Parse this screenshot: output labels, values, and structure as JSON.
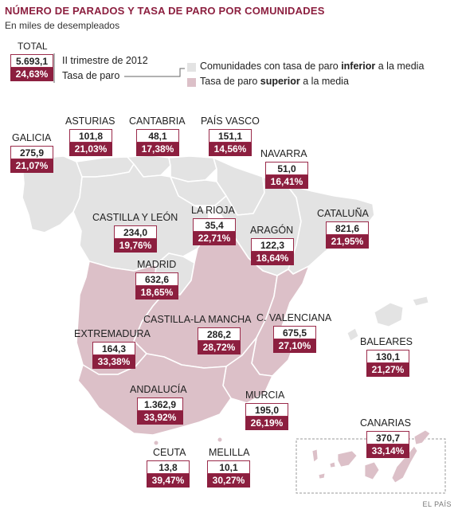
{
  "title": "NÚMERO DE PARADOS Y TASA DE PARO POR COMUNIDADES",
  "subtitle": "En miles de desempleados",
  "total": {
    "label": "TOTAL",
    "value": "5.693,1",
    "rate": "24,63%",
    "value_note": "II trimestre de 2012",
    "rate_note": "Tasa de paro"
  },
  "legend": {
    "below": {
      "prefix": "Comunidades con tasa de paro ",
      "bold": "inferior",
      "suffix": " a la media",
      "color": "#e3e3e3"
    },
    "above": {
      "prefix": "Tasa de paro ",
      "bold": "superior",
      "suffix": " a la media",
      "color": "#dcc0c8"
    }
  },
  "colors": {
    "accent": "#8c1f3f",
    "below_fill": "#e3e3e3",
    "above_fill": "#dcc0c8",
    "border": "#ffffff"
  },
  "regions": {
    "galicia": {
      "name": "GALICIA",
      "value": "275,9",
      "rate": "21,07%",
      "above_average": false
    },
    "asturias": {
      "name": "ASTURIAS",
      "value": "101,8",
      "rate": "21,03%",
      "above_average": false
    },
    "cantabria": {
      "name": "CANTABRIA",
      "value": "48,1",
      "rate": "17,38%",
      "above_average": false
    },
    "pais_vasco": {
      "name": "PAÍS VASCO",
      "value": "151,1",
      "rate": "14,56%",
      "above_average": false
    },
    "navarra": {
      "name": "NAVARRA",
      "value": "51,0",
      "rate": "16,41%",
      "above_average": false
    },
    "castilla_leon": {
      "name": "CASTILLA Y LEÓN",
      "value": "234,0",
      "rate": "19,76%",
      "above_average": false
    },
    "la_rioja": {
      "name": "LA RIOJA",
      "value": "35,4",
      "rate": "22,71%",
      "above_average": false
    },
    "aragon": {
      "name": "ARAGÓN",
      "value": "122,3",
      "rate": "18,64%",
      "above_average": false
    },
    "cataluna": {
      "name": "CATALUÑA",
      "value": "821,6",
      "rate": "21,95%",
      "above_average": false
    },
    "madrid": {
      "name": "MADRID",
      "value": "632,6",
      "rate": "18,65%",
      "above_average": false
    },
    "extremadura": {
      "name": "EXTREMADURA",
      "value": "164,3",
      "rate": "33,38%",
      "above_average": true
    },
    "castilla_mancha": {
      "name": "CASTILLA-LA MANCHA",
      "value": "286,2",
      "rate": "28,72%",
      "above_average": true
    },
    "c_valenciana": {
      "name": "C. VALENCIANA",
      "value": "675,5",
      "rate": "27,10%",
      "above_average": true
    },
    "baleares": {
      "name": "BALEARES",
      "value": "130,1",
      "rate": "21,27%",
      "above_average": false
    },
    "andalucia": {
      "name": "ANDALUCÍA",
      "value": "1.362,9",
      "rate": "33,92%",
      "above_average": true
    },
    "murcia": {
      "name": "MURCIA",
      "value": "195,0",
      "rate": "26,19%",
      "above_average": true
    },
    "canarias": {
      "name": "CANARIAS",
      "value": "370,7",
      "rate": "33,14%",
      "above_average": true
    },
    "ceuta": {
      "name": "CEUTA",
      "value": "13,8",
      "rate": "39,47%",
      "above_average": true
    },
    "melilla": {
      "name": "MELILLA",
      "value": "10,1",
      "rate": "30,27%",
      "above_average": true
    }
  },
  "credit": "EL PAÍS"
}
